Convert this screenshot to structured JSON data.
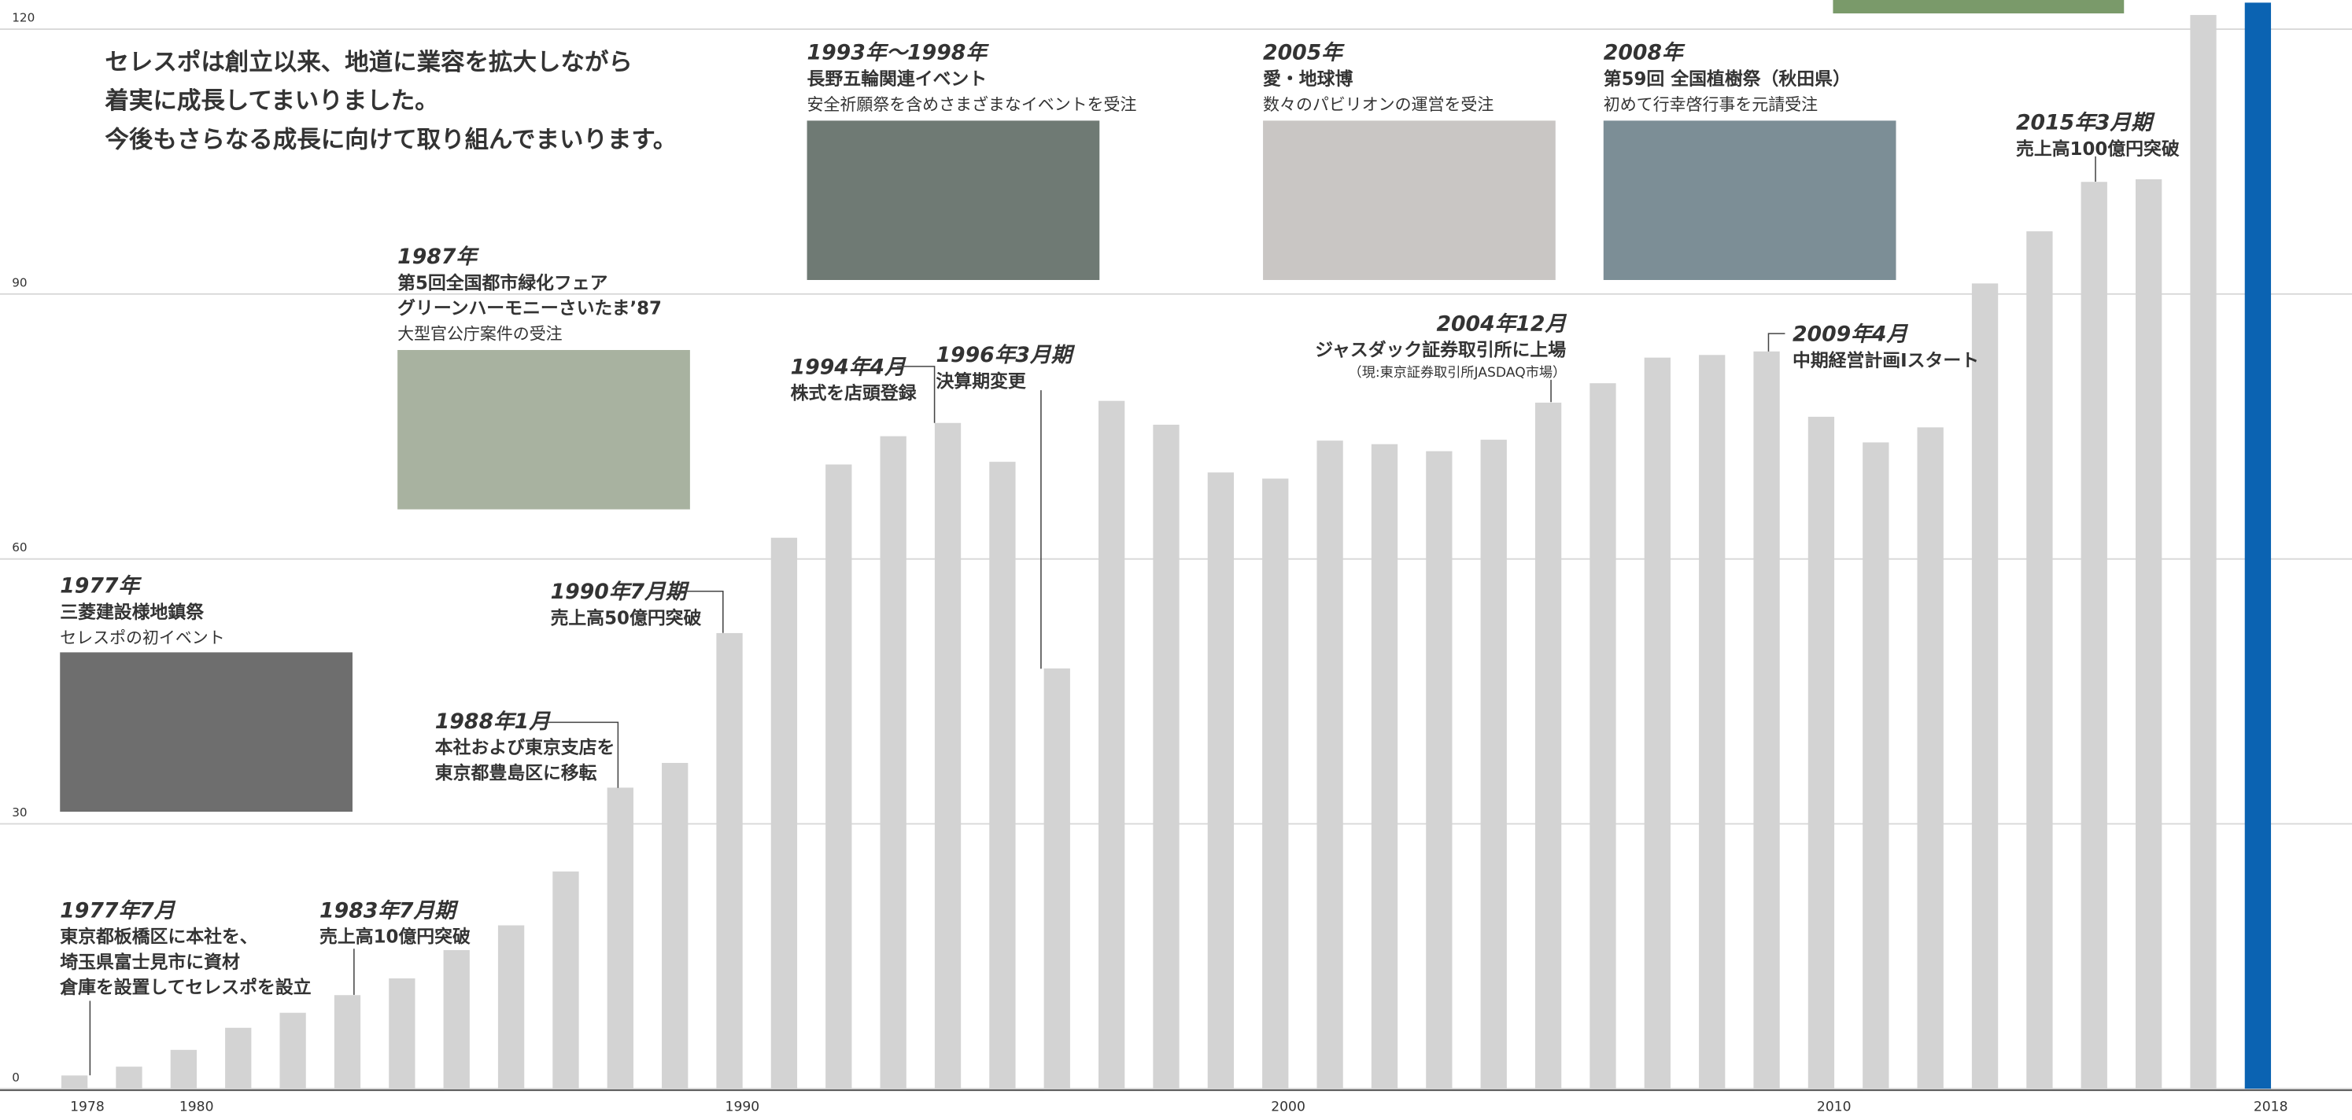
{
  "chart_data": {
    "type": "bar",
    "intro": [
      "セレスポは創立以来、地道に業容を拡大しながら",
      "着実に成長してまいりました。",
      "今後もさらなる成長に向けて取り組んでまいります。"
    ],
    "categories": [
      "1978",
      null,
      "1980",
      null,
      null,
      null,
      null,
      null,
      null,
      null,
      null,
      null,
      "1990",
      null,
      null,
      null,
      null,
      null,
      null,
      null,
      null,
      null,
      "2000",
      null,
      null,
      null,
      null,
      null,
      null,
      null,
      null,
      null,
      "2010",
      null,
      null,
      null,
      null,
      null,
      null,
      null,
      "2018"
    ],
    "values": [
      1.5,
      2.5,
      4.4,
      6.9,
      8.6,
      10.6,
      12.5,
      15.7,
      18.5,
      24.6,
      34.1,
      36.9,
      51.6,
      62.4,
      70.7,
      73.9,
      75.4,
      71,
      47.6,
      77.9,
      75.2,
      69.8,
      69.1,
      73.4,
      73,
      72.2,
      73.5,
      77.7,
      79.9,
      82.8,
      83.1,
      83.5,
      76.1,
      73.2,
      74.9,
      91.2,
      97.1,
      102.7,
      103,
      121.6,
      123
    ],
    "colors": [
      "#d3d3d3",
      "#d3d3d3",
      "#d3d3d3",
      "#d3d3d3",
      "#d3d3d3",
      "#d3d3d3",
      "#d3d3d3",
      "#d3d3d3",
      "#d3d3d3",
      "#d3d3d3",
      "#d3d3d3",
      "#d3d3d3",
      "#d3d3d3",
      "#d3d3d3",
      "#d3d3d3",
      "#d3d3d3",
      "#d3d3d3",
      "#d3d3d3",
      "#d3d3d3",
      "#d3d3d3",
      "#d3d3d3",
      "#d3d3d3",
      "#d3d3d3",
      "#d3d3d3",
      "#d3d3d3",
      "#d3d3d3",
      "#d3d3d3",
      "#d3d3d3",
      "#d3d3d3",
      "#d3d3d3",
      "#d3d3d3",
      "#d3d3d3",
      "#d3d3d3",
      "#d3d3d3",
      "#d3d3d3",
      "#d3d3d3",
      "#d3d3d3",
      "#d3d3d3",
      "#d3d3d3",
      "#d3d3d3",
      "#0b63b2"
    ],
    "ylim": [
      0,
      123.3
    ],
    "yticks": [
      0,
      30,
      60,
      90,
      120
    ],
    "grid": true,
    "annotations": [
      {
        "heading": "1977年",
        "color": "#333333",
        "lines": [
          "三菱建設様地鎮祭",
          "セレスポの初イベント"
        ]
      },
      {
        "heading": "1987年",
        "color": "#333333",
        "lines": [
          "第5回全国都市緑化フェア",
          "グリーンハーモニーさいたま’87",
          "大型官公庁案件の受注"
        ]
      },
      {
        "heading": "1993年～1998年",
        "color": "#333333",
        "lines": [
          "長野五輪関連イベント",
          "安全祈願祭を含めさまざまなイベントを受注"
        ]
      },
      {
        "heading": "2005年",
        "color": "#333333",
        "lines": [
          "愛・地球博",
          "数々のパビリオンの運営を受注"
        ]
      },
      {
        "heading": "2008年",
        "color": "#333333",
        "lines": [
          "第59回 全国植樹祭（秋田県）",
          "初めて行幸啓行事を元請受注"
        ]
      },
      {
        "heading": "1977年7月",
        "color": "#1aa5dc",
        "lines": [
          "東京都板橋区に本社を、",
          "埼玉県富士見市に資材",
          "倉庫を設置してセレスポを設立"
        ]
      },
      {
        "heading": "1983年7月期",
        "color": "#1aa5dc",
        "lines": [
          "売上高10億円突破"
        ]
      },
      {
        "heading": "1988年1月",
        "color": "#1aa5dc",
        "lines": [
          "本社および東京支店を",
          "東京都豊島区に移転"
        ]
      },
      {
        "heading": "1990年7月期",
        "color": "#1aa5dc",
        "lines": [
          "売上高50億円突破"
        ]
      },
      {
        "heading": "1994年4月",
        "color": "#1aa5dc",
        "lines": [
          "株式を店頭登録"
        ]
      },
      {
        "heading": "1996年3月期",
        "color": "#1aa5dc",
        "lines": [
          "決算期変更"
        ]
      },
      {
        "heading": "2004年12月",
        "color": "#1aa5dc",
        "lines": [
          "ジャスダック証券取引所に上場",
          "（現:東京証券取引所JASDAQ市場）"
        ]
      },
      {
        "heading": "2009年4月",
        "color": "#1aa5dc",
        "lines": [
          "中期経営計画Iスタート"
        ]
      },
      {
        "heading": "2015年3月期",
        "color": "#1aa5dc",
        "lines": [
          "売上高100億円突破"
        ]
      }
    ]
  }
}
